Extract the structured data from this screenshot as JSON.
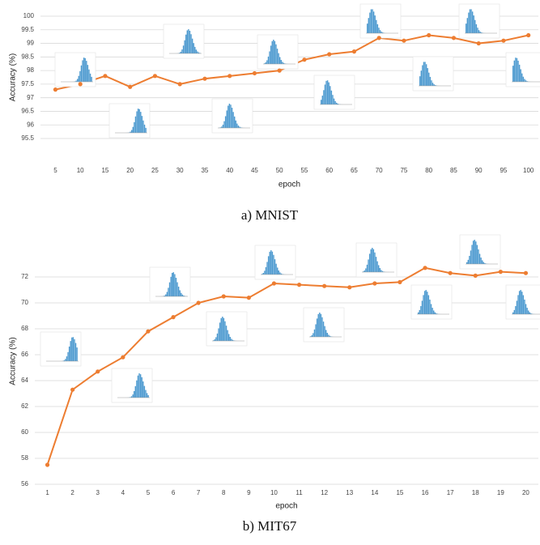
{
  "chart_data": [
    {
      "type": "line",
      "caption": "a) MNIST",
      "xlabel": "epoch",
      "ylabel": "Accuracy (%)",
      "color": "#ed7d31",
      "grid": true,
      "x": [
        5,
        10,
        15,
        20,
        25,
        30,
        35,
        40,
        45,
        50,
        55,
        60,
        65,
        70,
        75,
        80,
        85,
        90,
        95,
        100
      ],
      "values": [
        97.3,
        97.5,
        97.8,
        97.4,
        97.8,
        97.5,
        97.7,
        97.8,
        97.9,
        98.0,
        98.4,
        98.6,
        98.7,
        99.2,
        99.1,
        99.3,
        99.2,
        99.0,
        99.1,
        99.3
      ],
      "xlim": [
        2,
        102
      ],
      "xticks": [
        5,
        10,
        15,
        20,
        25,
        30,
        35,
        40,
        45,
        50,
        55,
        60,
        65,
        70,
        75,
        80,
        85,
        90,
        95,
        100
      ],
      "ylim": [
        95.5,
        100
      ],
      "yticks": [
        95.5,
        96,
        96.5,
        97,
        97.5,
        98,
        98.5,
        99,
        99.5,
        100
      ]
    },
    {
      "type": "line",
      "caption": "b) MIT67",
      "xlabel": "epoch",
      "ylabel": "Accuracy (%)",
      "color": "#ed7d31",
      "grid": true,
      "x": [
        1,
        2,
        3,
        4,
        5,
        6,
        7,
        8,
        9,
        10,
        11,
        12,
        13,
        14,
        15,
        16,
        17,
        18,
        19,
        20
      ],
      "values": [
        57.5,
        63.3,
        64.7,
        65.8,
        67.8,
        68.9,
        70.0,
        70.5,
        70.4,
        71.5,
        71.4,
        71.3,
        71.2,
        71.5,
        71.6,
        72.7,
        72.3,
        72.1,
        72.4,
        72.3
      ],
      "xlim": [
        0.5,
        20.5
      ],
      "xticks": [
        1,
        2,
        3,
        4,
        5,
        6,
        7,
        8,
        9,
        10,
        11,
        12,
        13,
        14,
        15,
        16,
        17,
        18,
        19,
        20
      ],
      "ylim": [
        56,
        75
      ],
      "yticks": [
        56,
        58,
        60,
        62,
        64,
        66,
        68,
        70,
        72
      ]
    }
  ]
}
